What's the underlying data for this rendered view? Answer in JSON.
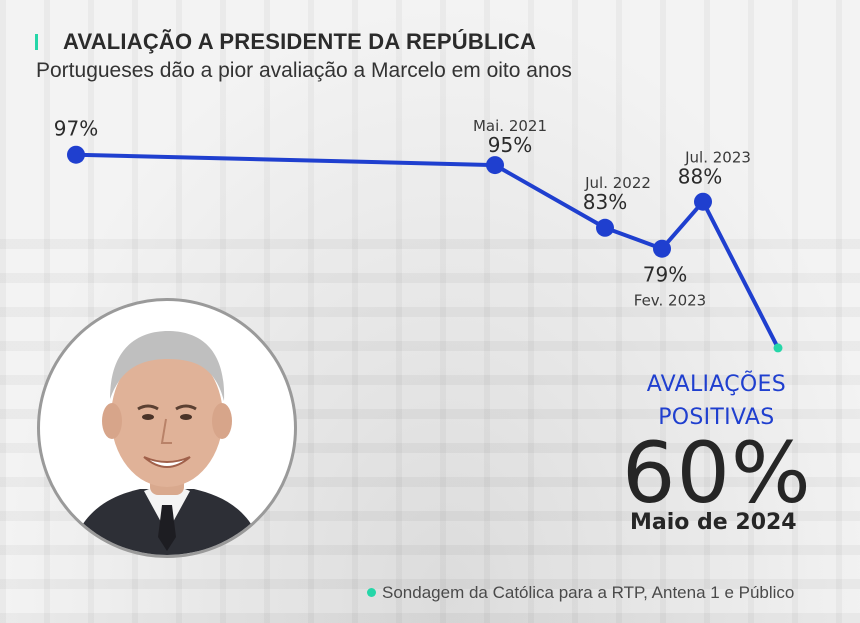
{
  "header": {
    "title": "AVALIAÇÃO A PRESIDENTE DA REPÚBLICA",
    "subtitle": "Portugueses dão a pior avaliação a Marcelo em oito anos"
  },
  "chart_data": {
    "type": "line",
    "series": [
      {
        "points": [
          {
            "label": "97%",
            "value": 97,
            "date": ""
          },
          {
            "label": "95%",
            "value": 95,
            "date": "Mai. 2021"
          },
          {
            "label": "83%",
            "value": 83,
            "date": "Jul. 2022"
          },
          {
            "label": "79%",
            "value": 79,
            "date": "Fev. 2023"
          },
          {
            "label": "88%",
            "value": 88,
            "date": "Jul. 2023"
          },
          {
            "label": "",
            "value": 60,
            "date": ""
          }
        ],
        "color": "#1f3fcf",
        "last_point_color": "#25d6a8"
      }
    ],
    "ylim": [
      55,
      100
    ],
    "grid": false
  },
  "callout": {
    "line1": "AVALIAÇÕES",
    "line2": "POSITIVAS",
    "value": "60%",
    "date": "Maio de 2024"
  },
  "source": "Sondagem da Católica para a RTP, Antena 1 e Público",
  "colors": {
    "line": "#1f3fcf",
    "accent": "#25d6a8",
    "text": "#2b2b2b"
  }
}
